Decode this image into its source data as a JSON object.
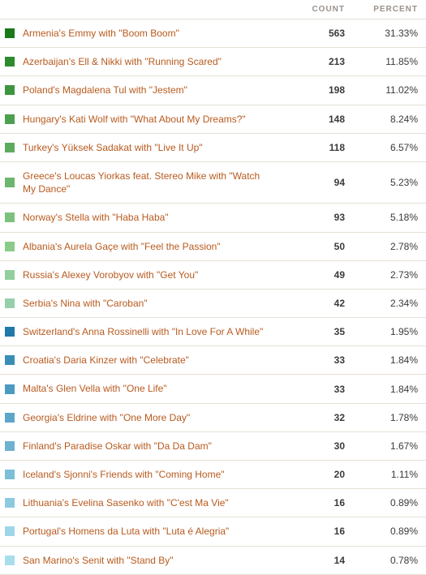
{
  "headers": {
    "count": "COUNT",
    "percent": "PERCENT"
  },
  "label_color": "#b85a1e",
  "text_color": "#3a3a3a",
  "header_color": "#999289",
  "border_color": "#e6e0d6",
  "rows": [
    {
      "swatch": "#1a7a1a",
      "label": "Armenia's Emmy with \"Boom Boom\"",
      "count": "563",
      "percent": "31.33%"
    },
    {
      "swatch": "#2d8a2d",
      "label": "Azerbaijan's Ell & Nikki with \"Running Scared\"",
      "count": "213",
      "percent": "11.85%"
    },
    {
      "swatch": "#3d953d",
      "label": "Poland's Magdalena Tul with \"Jestem\"",
      "count": "198",
      "percent": "11.02%"
    },
    {
      "swatch": "#4da04d",
      "label": "Hungary's Kati Wolf with \"What About My Dreams?\"",
      "count": "148",
      "percent": "8.24%"
    },
    {
      "swatch": "#5dab5d",
      "label": "Turkey's Yüksek Sadakat with \"Live It Up\"",
      "count": "118",
      "percent": "6.57%"
    },
    {
      "swatch": "#6db66d",
      "label": "Greece's Loucas Yiorkas feat. Stereo Mike with \"Watch My Dance\"",
      "count": "94",
      "percent": "5.23%"
    },
    {
      "swatch": "#7dc17d",
      "label": "Norway's Stella with \"Haba Haba\"",
      "count": "93",
      "percent": "5.18%"
    },
    {
      "swatch": "#8acb8a",
      "label": "Albania's Aurela Gaçe with \"Feel the Passion\"",
      "count": "50",
      "percent": "2.78%"
    },
    {
      "swatch": "#92cf9c",
      "label": "Russia's Alexey Vorobyov with \"Get You\"",
      "count": "49",
      "percent": "2.73%"
    },
    {
      "swatch": "#95d0ab",
      "label": "Serbia's Nina with \"Caroban\"",
      "count": "42",
      "percent": "2.34%"
    },
    {
      "swatch": "#2079a8",
      "label": "Switzerland's Anna Rossinelli with \"In Love For A While\"",
      "count": "35",
      "percent": "1.95%"
    },
    {
      "swatch": "#3a8db5",
      "label": "Croatia's Daria Kinzer with \"Celebrate\"",
      "count": "33",
      "percent": "1.84%"
    },
    {
      "swatch": "#4d9ac0",
      "label": "Malta's Glen Vella with \"One Life\"",
      "count": "33",
      "percent": "1.84%"
    },
    {
      "swatch": "#5da6c8",
      "label": "Georgia's Eldrine with \"One More Day\"",
      "count": "32",
      "percent": "1.78%"
    },
    {
      "swatch": "#6db2d0",
      "label": "Finland's Paradise Oskar with \"Da Da Dam\"",
      "count": "30",
      "percent": "1.67%"
    },
    {
      "swatch": "#7dbed8",
      "label": "Iceland's Sjonni's Friends with \"Coming Home\"",
      "count": "20",
      "percent": "1.11%"
    },
    {
      "swatch": "#8dcae0",
      "label": "Lithuania's Evelina Sasenko with \"C'est Ma Vie\"",
      "count": "16",
      "percent": "0.89%"
    },
    {
      "swatch": "#9dd6e8",
      "label": "Portugal's Homens da Luta with \"Luta é Alegria\"",
      "count": "16",
      "percent": "0.89%"
    },
    {
      "swatch": "#a8ddec",
      "label": "San Marino's Senit with \"Stand By\"",
      "count": "14",
      "percent": "0.78%"
    }
  ]
}
